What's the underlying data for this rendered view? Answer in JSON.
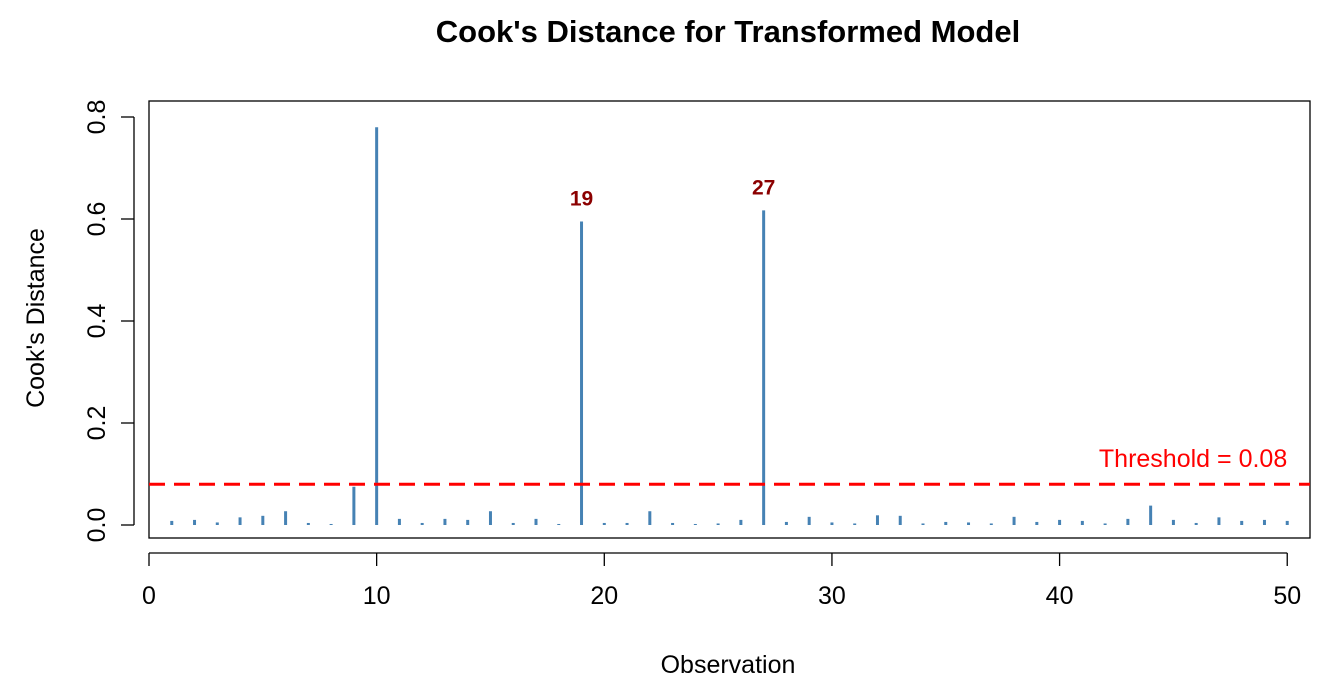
{
  "chart_data": {
    "type": "bar",
    "title": "Cook's Distance for Transformed Model",
    "xlabel": "Observation",
    "ylabel": "Cook's Distance",
    "xlim": [
      0,
      51
    ],
    "ylim": [
      0,
      0.8
    ],
    "x_ticks": [
      0,
      10,
      20,
      30,
      40,
      50
    ],
    "y_ticks": [
      0.0,
      0.2,
      0.4,
      0.6,
      0.8
    ],
    "x_tick_labels": [
      "0",
      "10",
      "20",
      "30",
      "40",
      "50"
    ],
    "y_tick_labels": [
      "0.0",
      "0.2",
      "0.4",
      "0.6",
      "0.8"
    ],
    "grid": false,
    "bar_color": "#4682b4",
    "observations": [
      1,
      2,
      3,
      4,
      5,
      6,
      7,
      8,
      9,
      10,
      11,
      12,
      13,
      14,
      15,
      16,
      17,
      18,
      19,
      20,
      21,
      22,
      23,
      24,
      25,
      26,
      27,
      28,
      29,
      30,
      31,
      32,
      33,
      34,
      35,
      36,
      37,
      38,
      39,
      40,
      41,
      42,
      43,
      44,
      45,
      46,
      47,
      48,
      49,
      50
    ],
    "values": [
      0.008,
      0.01,
      0.005,
      0.015,
      0.018,
      0.027,
      0.004,
      0.002,
      0.075,
      0.78,
      0.012,
      0.004,
      0.012,
      0.01,
      0.027,
      0.004,
      0.012,
      0.002,
      0.595,
      0.004,
      0.004,
      0.027,
      0.004,
      0.002,
      0.003,
      0.01,
      0.617,
      0.006,
      0.016,
      0.005,
      0.003,
      0.019,
      0.018,
      0.003,
      0.006,
      0.005,
      0.003,
      0.016,
      0.006,
      0.01,
      0.008,
      0.003,
      0.012,
      0.038,
      0.01,
      0.004,
      0.015,
      0.008,
      0.01,
      0.008
    ],
    "threshold": {
      "value": 0.08,
      "label": "Threshold = 0.08",
      "color": "#ff0000"
    },
    "annotations": [
      {
        "x": 19,
        "label": "19"
      },
      {
        "x": 27,
        "label": "27"
      }
    ],
    "annotation_color": "#8b0000"
  }
}
